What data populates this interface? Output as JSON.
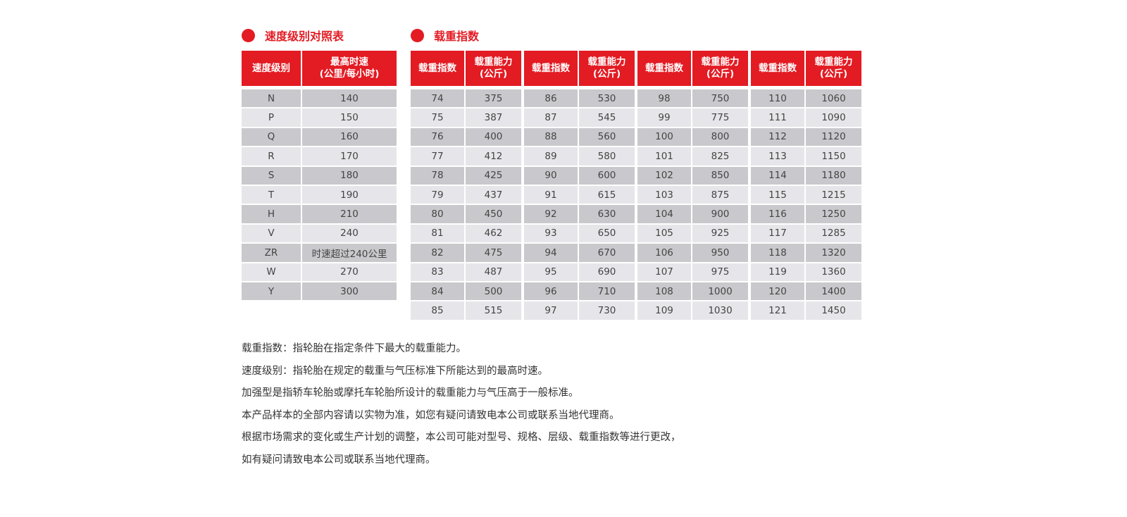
{
  "speed_section": {
    "title": "速度级别对照表",
    "headers": [
      "速度级别",
      "最高时速\n(公里/每小时)"
    ],
    "rows": [
      [
        "N",
        "140"
      ],
      [
        "P",
        "150"
      ],
      [
        "Q",
        "160"
      ],
      [
        "R",
        "170"
      ],
      [
        "S",
        "180"
      ],
      [
        "T",
        "190"
      ],
      [
        "H",
        "210"
      ],
      [
        "V",
        "240"
      ],
      [
        "ZR",
        "时速超过240公里"
      ],
      [
        "W",
        "270"
      ],
      [
        "Y",
        "300"
      ]
    ]
  },
  "load_section": {
    "title": "载重指数",
    "headers": [
      "载重指数",
      "载重能力\n(公斤)"
    ],
    "tables": [
      [
        [
          "74",
          "375"
        ],
        [
          "75",
          "387"
        ],
        [
          "76",
          "400"
        ],
        [
          "77",
          "412"
        ],
        [
          "78",
          "425"
        ],
        [
          "79",
          "437"
        ],
        [
          "80",
          "450"
        ],
        [
          "81",
          "462"
        ],
        [
          "82",
          "475"
        ],
        [
          "83",
          "487"
        ],
        [
          "84",
          "500"
        ],
        [
          "85",
          "515"
        ]
      ],
      [
        [
          "86",
          "530"
        ],
        [
          "87",
          "545"
        ],
        [
          "88",
          "560"
        ],
        [
          "89",
          "580"
        ],
        [
          "90",
          "600"
        ],
        [
          "91",
          "615"
        ],
        [
          "92",
          "630"
        ],
        [
          "93",
          "650"
        ],
        [
          "94",
          "670"
        ],
        [
          "95",
          "690"
        ],
        [
          "96",
          "710"
        ],
        [
          "97",
          "730"
        ]
      ],
      [
        [
          "98",
          "750"
        ],
        [
          "99",
          "775"
        ],
        [
          "100",
          "800"
        ],
        [
          "101",
          "825"
        ],
        [
          "102",
          "850"
        ],
        [
          "103",
          "875"
        ],
        [
          "104",
          "900"
        ],
        [
          "105",
          "925"
        ],
        [
          "106",
          "950"
        ],
        [
          "107",
          "975"
        ],
        [
          "108",
          "1000"
        ],
        [
          "109",
          "1030"
        ]
      ],
      [
        [
          "110",
          "1060"
        ],
        [
          "111",
          "1090"
        ],
        [
          "112",
          "1120"
        ],
        [
          "113",
          "1150"
        ],
        [
          "114",
          "1180"
        ],
        [
          "115",
          "1215"
        ],
        [
          "116",
          "1250"
        ],
        [
          "117",
          "1285"
        ],
        [
          "118",
          "1320"
        ],
        [
          "119",
          "1360"
        ],
        [
          "120",
          "1400"
        ],
        [
          "121",
          "1450"
        ]
      ]
    ]
  },
  "notes": [
    "载重指数：指轮胎在指定条件下最大的载重能力。",
    "速度级别：指轮胎在规定的载重与气压标准下所能达到的最高时速。",
    "加强型是指轿车轮胎或摩托车轮胎所设计的载重能力与气压高于一般标准。",
    "本产品样本的全部内容请以实物为准，如您有疑问请致电本公司或联系当地代理商。",
    "根据市场需求的变化或生产计划的调整，本公司可能对型号、规格、层级、载重指数等进行更改，",
    "如有疑问请致电本公司或联系当地代理商。"
  ],
  "colors": {
    "accent": "#e31b23",
    "row_dark": "#c9c8cc",
    "row_light": "#e6e5e9"
  }
}
